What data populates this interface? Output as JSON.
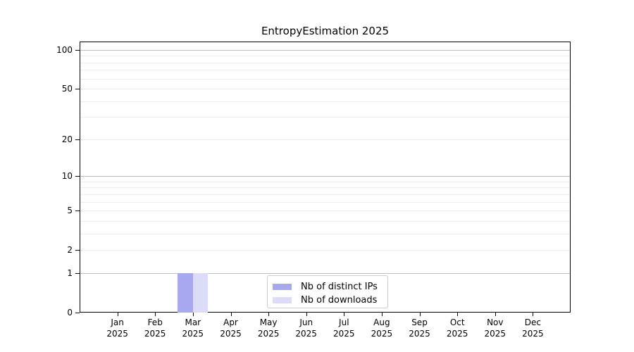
{
  "chart_data": {
    "type": "bar",
    "title": "EntropyEstimation 2025",
    "xlabel": "",
    "ylabel": "",
    "x_year_label": "2025",
    "categories": [
      "Jan",
      "Feb",
      "Mar",
      "Apr",
      "May",
      "Jun",
      "Jul",
      "Aug",
      "Sep",
      "Oct",
      "Nov",
      "Dec"
    ],
    "series": [
      {
        "name": "Nb of distinct IPs",
        "color": "#a8a8f0",
        "values": [
          0,
          0,
          1,
          0,
          0,
          0,
          0,
          0,
          0,
          0,
          0,
          0
        ]
      },
      {
        "name": "Nb of downloads",
        "color": "#dcdcf8",
        "values": [
          0,
          0,
          1,
          0,
          0,
          0,
          0,
          0,
          0,
          0,
          0,
          0
        ]
      }
    ],
    "yticks": [
      100,
      50,
      20,
      10,
      5,
      2,
      1,
      0
    ],
    "major_gridlines": [
      1,
      10,
      100
    ],
    "minor_gridlines": [
      2,
      3,
      4,
      5,
      6,
      7,
      8,
      9,
      20,
      30,
      40,
      50,
      60,
      70,
      80,
      90
    ],
    "scale": "log1p",
    "ylim": [
      0,
      116
    ],
    "grid": "horizontal-only",
    "legend_position": "lower center"
  },
  "colors": {
    "background": "#ffffff",
    "spine": "#000000",
    "major_grid": "#bfbfbf",
    "minor_grid": "#ececec",
    "legend_border": "#cccccc",
    "text": "#000000"
  }
}
